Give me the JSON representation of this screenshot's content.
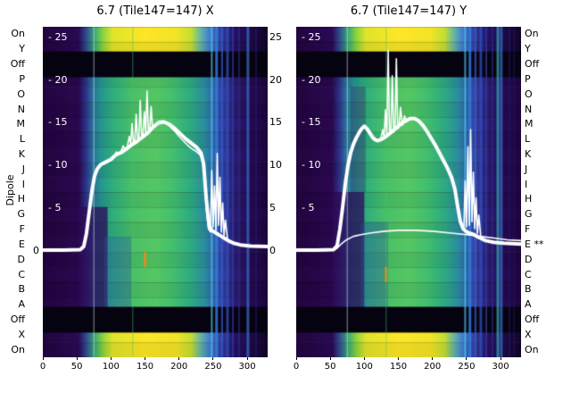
{
  "dipole_label": "Dipole",
  "colors": {
    "background": "#ffffff",
    "line": "#ffffff",
    "text": "#000000"
  },
  "shared": {
    "rows": [
      "On",
      "Y",
      "Off",
      "P",
      "O",
      "N",
      "M",
      "L",
      "K",
      "J",
      "I",
      "H",
      "G",
      "F",
      "E",
      "D",
      "C",
      "B",
      "A",
      "Off",
      "X",
      "On"
    ],
    "rows_right": [
      "On",
      "Y",
      "Off",
      "P",
      "O",
      "N",
      "M",
      "L",
      "K",
      "J",
      "I",
      "H",
      "G",
      "F",
      "E **",
      "D",
      "C",
      "B",
      "A",
      "Off",
      "X",
      "On"
    ],
    "row_styles": [
      "bright",
      "bright",
      "dark",
      "main",
      "main",
      "main",
      "main",
      "main",
      "main",
      "main",
      "main",
      "main",
      "main",
      "main",
      "main",
      "main",
      "main",
      "main",
      "main",
      "dark",
      "bright",
      "bright"
    ],
    "band_dark": "#060310",
    "y_axis": {
      "v0_frac": 0.678,
      "v25_frac": 0.032,
      "inner_ticks": [
        25,
        20,
        15,
        10,
        5
      ],
      "inner_tick_labels": [
        "- 25",
        "- 20",
        "- 15",
        "- 10",
        "- 5"
      ],
      "gap_ticks": [
        25,
        20,
        15,
        10,
        5,
        0
      ],
      "gap_tick_labels": [
        "25",
        "20",
        "15",
        "10",
        "5",
        "0"
      ],
      "zero_label": "0"
    },
    "gradients": {
      "main": [
        [
          0,
          "#23053f"
        ],
        [
          0.16,
          "#2a0850"
        ],
        [
          0.19,
          "#2e2f86"
        ],
        [
          0.22,
          "#2a6f9e"
        ],
        [
          0.26,
          "#26968e"
        ],
        [
          0.31,
          "#2fae7e"
        ],
        [
          0.4,
          "#4ac168"
        ],
        [
          0.5,
          "#55c763"
        ],
        [
          0.58,
          "#43bf6e"
        ],
        [
          0.66,
          "#2daa82"
        ],
        [
          0.72,
          "#2b8da0"
        ],
        [
          0.76,
          "#2f62b0"
        ],
        [
          0.8,
          "#333f9e"
        ],
        [
          0.85,
          "#2b1d74"
        ],
        [
          0.92,
          "#240b52"
        ],
        [
          1,
          "#1d0640"
        ]
      ],
      "bright": [
        [
          0,
          "#22053f"
        ],
        [
          0.16,
          "#2a0a55"
        ],
        [
          0.19,
          "#31458e"
        ],
        [
          0.23,
          "#37a876"
        ],
        [
          0.27,
          "#90d53c"
        ],
        [
          0.31,
          "#e0e42a"
        ],
        [
          0.45,
          "#fde725"
        ],
        [
          0.6,
          "#f2e426"
        ],
        [
          0.66,
          "#c4de30"
        ],
        [
          0.7,
          "#6ab8a0"
        ],
        [
          0.74,
          "#3f7fd0"
        ],
        [
          0.79,
          "#333f9e"
        ],
        [
          0.85,
          "#241264"
        ],
        [
          1,
          "#130428"
        ]
      ],
      "dark": [
        [
          0,
          "#05020c"
        ],
        [
          0.5,
          "#0a0516"
        ],
        [
          1,
          "#040208"
        ]
      ]
    }
  },
  "chart_data": [
    {
      "type": "heatmap",
      "title": "6.7 (Tile147=147) X",
      "x_range": [
        0,
        330
      ],
      "x_ticks": [
        0,
        50,
        100,
        150,
        200,
        250,
        300
      ],
      "ylabel": "Dipole",
      "patches": [
        {
          "x0": 55,
          "x1": 95,
          "r0": 12,
          "r1": 19,
          "color": "#2c0a55",
          "alpha": 0.75
        },
        {
          "x0": 90,
          "x1": 130,
          "r0": 14,
          "r1": 19,
          "color": "#2b4fa0",
          "alpha": 0.35
        },
        {
          "x0": 148,
          "x1": 152,
          "r0": 15,
          "r1": 16,
          "color": "#e09020",
          "alpha": 0.9
        }
      ],
      "stripes": [
        {
          "x": 75,
          "w": 1.2,
          "color": "#d8ecf4",
          "alpha": 0.5
        },
        {
          "x": 132,
          "w": 1.2,
          "color": "#49c06a",
          "alpha": 0.45
        },
        {
          "x": 248,
          "w": 2,
          "color": "#52c8e8",
          "alpha": 0.7
        },
        {
          "x": 255,
          "w": 3,
          "color": "#2f7fe0",
          "alpha": 0.8
        },
        {
          "x": 263,
          "w": 2,
          "color": "#3a5fd0",
          "alpha": 0.75
        },
        {
          "x": 271,
          "w": 3,
          "color": "#2f4fc0",
          "alpha": 0.75
        },
        {
          "x": 279,
          "w": 2,
          "color": "#3a3aa8",
          "alpha": 0.65
        },
        {
          "x": 288,
          "w": 2,
          "color": "#2f2f90",
          "alpha": 0.55
        },
        {
          "x": 301,
          "w": 3,
          "color": "#3f6fd0",
          "alpha": 0.7
        },
        {
          "x": 313,
          "w": 2,
          "color": "#2a1a70",
          "alpha": 0.5
        }
      ],
      "series": [
        {
          "name": "bundle",
          "width": 4,
          "x": [
            0,
            30,
            55,
            60,
            64,
            68,
            72,
            76,
            80,
            85,
            90,
            100,
            108,
            115,
            122,
            130,
            138,
            146,
            154,
            162,
            170,
            178,
            186,
            194,
            202,
            210,
            218,
            226,
            232,
            236,
            240,
            244,
            248,
            252,
            256,
            260,
            264,
            268,
            272,
            280,
            290,
            305,
            330
          ],
          "y": [
            0.1,
            0.1,
            0.15,
            0.5,
            2,
            4.5,
            7,
            8.8,
            9.6,
            10.1,
            10.3,
            10.7,
            11.3,
            11.5,
            11.9,
            12.4,
            12.8,
            13.3,
            13.8,
            14.5,
            15.0,
            15.1,
            14.8,
            14.3,
            13.7,
            13.1,
            12.6,
            12.1,
            11.5,
            10.2,
            6,
            3,
            2.4,
            2.2,
            2.0,
            1.8,
            1.6,
            1.4,
            1.2,
            0.9,
            0.7,
            0.55,
            0.5
          ]
        },
        {
          "name": "trace",
          "width": 1.6,
          "x": [
            0,
            30,
            55,
            60,
            64,
            68,
            72,
            76,
            80,
            85,
            90,
            95,
            100,
            105,
            108,
            110,
            114,
            118,
            121,
            124,
            127,
            129,
            131,
            133,
            135,
            137,
            139,
            141,
            143,
            145,
            147,
            149,
            151,
            153,
            155,
            157,
            159,
            161,
            164,
            168,
            172,
            176,
            180,
            185,
            190,
            195,
            200,
            206,
            212,
            218,
            224,
            230,
            234,
            237,
            240,
            243,
            246,
            248,
            250,
            252,
            254,
            256,
            258,
            260,
            262,
            264,
            266,
            268,
            271,
            275,
            282,
            292,
            305,
            320,
            330
          ],
          "y": [
            0.1,
            0.1,
            0.15,
            0.5,
            2,
            4.5,
            7,
            8.8,
            9.6,
            10.1,
            10.3,
            10.4,
            10.7,
            11.0,
            11.6,
            11.2,
            11.5,
            12.3,
            11.9,
            12.2,
            13.4,
            12.5,
            14.9,
            12.7,
            12.9,
            16.0,
            13.0,
            13.2,
            17.6,
            13.4,
            13.6,
            16.3,
            13.8,
            18.7,
            14.0,
            14.2,
            16.9,
            14.4,
            14.7,
            15.0,
            15.2,
            15.2,
            15.0,
            14.7,
            14.3,
            13.9,
            13.4,
            12.9,
            12.4,
            12.0,
            11.7,
            11.3,
            10.8,
            8.8,
            4.8,
            2.6,
            2.2,
            9.4,
            2.8,
            7.6,
            2.4,
            11.4,
            3.0,
            8.6,
            2.2,
            5.6,
            1.8,
            3.6,
            1.4,
            1.1,
            0.9,
            0.7,
            0.6,
            0.5,
            0.5
          ]
        }
      ]
    },
    {
      "type": "heatmap",
      "title": "6.7 (Tile147=147) Y",
      "x_range": [
        0,
        330
      ],
      "x_ticks": [
        0,
        50,
        100,
        150,
        200,
        250,
        300
      ],
      "ylabel": "Dipole",
      "patches": [
        {
          "x0": 55,
          "x1": 100,
          "r0": 11,
          "r1": 19,
          "color": "#2c0a55",
          "alpha": 0.75
        },
        {
          "x0": 95,
          "x1": 135,
          "r0": 13,
          "r1": 19,
          "color": "#2b4fa0",
          "alpha": 0.35
        },
        {
          "x0": 80,
          "x1": 102,
          "r0": 4,
          "r1": 11,
          "color": "#3a0d63",
          "alpha": 0.3
        },
        {
          "x0": 130,
          "x1": 134,
          "r0": 16,
          "r1": 17,
          "color": "#e09020",
          "alpha": 0.9
        }
      ],
      "stripes": [
        {
          "x": 75,
          "w": 1.2,
          "color": "#d8ecf4",
          "alpha": 0.5
        },
        {
          "x": 132,
          "w": 1.2,
          "color": "#49c06a",
          "alpha": 0.45
        },
        {
          "x": 248,
          "w": 2,
          "color": "#52c8e8",
          "alpha": 0.7
        },
        {
          "x": 255,
          "w": 3,
          "color": "#2f7fe0",
          "alpha": 0.8
        },
        {
          "x": 263,
          "w": 2,
          "color": "#3a5fd0",
          "alpha": 0.75
        },
        {
          "x": 271,
          "w": 3,
          "color": "#2f4fc0",
          "alpha": 0.75
        },
        {
          "x": 279,
          "w": 2,
          "color": "#3a3aa8",
          "alpha": 0.65
        },
        {
          "x": 288,
          "w": 2,
          "color": "#2f2f90",
          "alpha": 0.55
        },
        {
          "x": 296,
          "w": 3,
          "color": "#35b0b8",
          "alpha": 0.7
        },
        {
          "x": 301,
          "w": 3,
          "color": "#3f6fd0",
          "alpha": 0.7
        },
        {
          "x": 313,
          "w": 2,
          "color": "#2a1a70",
          "alpha": 0.5
        },
        {
          "x": 320,
          "w": 2,
          "color": "#241468",
          "alpha": 0.5
        }
      ],
      "series": [
        {
          "name": "bundle",
          "width": 4,
          "x": [
            0,
            30,
            55,
            60,
            64,
            68,
            72,
            76,
            80,
            84,
            88,
            92,
            96,
            100,
            104,
            108,
            112,
            116,
            120,
            126,
            132,
            138,
            144,
            150,
            156,
            162,
            168,
            174,
            180,
            186,
            192,
            198,
            204,
            210,
            216,
            222,
            228,
            233,
            237,
            241,
            245,
            249,
            253,
            257,
            261,
            265,
            270,
            278,
            290,
            305,
            330
          ],
          "y": [
            0.1,
            0.1,
            0.15,
            0.6,
            2.5,
            5,
            7.8,
            10,
            11.5,
            12.5,
            13.2,
            13.8,
            14.3,
            14.6,
            14.3,
            13.8,
            13.3,
            13.0,
            12.9,
            13.1,
            13.4,
            13.8,
            14.2,
            14.6,
            15.0,
            15.3,
            15.5,
            15.5,
            15.2,
            14.7,
            14.0,
            13.2,
            12.4,
            11.5,
            10.6,
            9.7,
            8.6,
            7.2,
            5.2,
            3.4,
            2.6,
            2.3,
            2.1,
            2.0,
            1.9,
            1.7,
            1.5,
            1.2,
            1.0,
            0.9,
            0.8
          ]
        },
        {
          "name": "trace",
          "width": 1.6,
          "x": [
            0,
            30,
            55,
            60,
            64,
            68,
            72,
            76,
            80,
            84,
            88,
            92,
            96,
            100,
            104,
            108,
            112,
            116,
            120,
            124,
            127,
            129,
            131,
            133,
            135,
            137,
            139,
            141,
            143,
            145,
            147,
            149,
            151,
            153,
            156,
            159,
            162,
            166,
            170,
            175,
            180,
            186,
            192,
            198,
            204,
            210,
            216,
            222,
            228,
            233,
            237,
            240,
            243,
            246,
            248,
            250,
            252,
            254,
            256,
            258,
            260,
            262,
            264,
            266,
            268,
            271,
            275,
            282,
            292,
            305,
            320,
            330
          ],
          "y": [
            0.1,
            0.1,
            0.15,
            0.6,
            2.5,
            5,
            7.8,
            10,
            11.5,
            12.5,
            13.2,
            13.8,
            14.3,
            14.6,
            14.3,
            13.8,
            13.3,
            13.0,
            12.9,
            13.1,
            14.2,
            13.2,
            16.5,
            13.4,
            23.5,
            13.6,
            14.0,
            20.5,
            13.9,
            14.1,
            22.5,
            14.3,
            14.5,
            16.8,
            14.7,
            15.8,
            15.1,
            15.4,
            15.6,
            15.5,
            15.2,
            14.7,
            14.0,
            13.2,
            12.4,
            11.5,
            10.6,
            9.7,
            8.6,
            7.2,
            5.2,
            3.6,
            2.8,
            2.4,
            8.2,
            2.8,
            12.2,
            3.0,
            14.2,
            3.4,
            9.2,
            2.6,
            6.2,
            2.0,
            4.2,
            1.6,
            1.3,
            1.1,
            1.0,
            0.9,
            0.85,
            0.8
          ]
        },
        {
          "name": "flat",
          "width": 1.6,
          "x": [
            0,
            40,
            55,
            60,
            66,
            74,
            84,
            95,
            110,
            130,
            150,
            175,
            200,
            225,
            250,
            270,
            290,
            310,
            330
          ],
          "y": [
            0.05,
            0.05,
            0.1,
            0.3,
            0.8,
            1.3,
            1.7,
            1.9,
            2.1,
            2.3,
            2.4,
            2.4,
            2.3,
            2.1,
            1.9,
            1.7,
            1.5,
            1.3,
            1.2
          ]
        }
      ]
    }
  ]
}
